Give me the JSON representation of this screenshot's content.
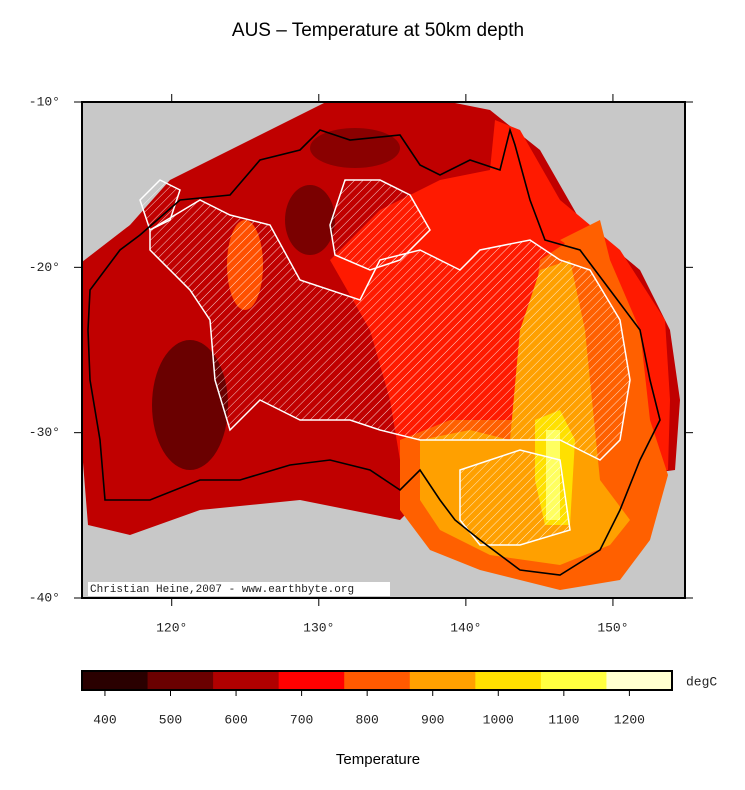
{
  "map": {
    "title": "AUS – Temperature at 50km depth",
    "lonlim": [
      113.9,
      154.9
    ],
    "latlim": [
      -10,
      -40
    ],
    "lat_ticks": [
      {
        "value": -10,
        "label": "-10°"
      },
      {
        "value": -20,
        "label": "-20°"
      },
      {
        "value": -30,
        "label": "-30°"
      },
      {
        "value": -40,
        "label": "-40°"
      }
    ],
    "lon_ticks": [
      {
        "value": 120,
        "label": "120°"
      },
      {
        "value": 130,
        "label": "130°"
      },
      {
        "value": 140,
        "label": "140°"
      },
      {
        "value": 150,
        "label": "150°"
      }
    ],
    "credit": "Christian Heine,2007 - www.earthbyte.org",
    "colorbar": {
      "range": [
        365,
        1265
      ],
      "colors": [
        "#2a0000",
        "#6a0000",
        "#b00000",
        "#ff0000",
        "#ff5a00",
        "#ffa000",
        "#ffe000",
        "#ffff40",
        "#ffffd0"
      ],
      "ticks": [
        400,
        500,
        600,
        700,
        800,
        900,
        1000,
        1100,
        1200
      ],
      "unit": "degC",
      "label": "Temperature"
    }
  }
}
